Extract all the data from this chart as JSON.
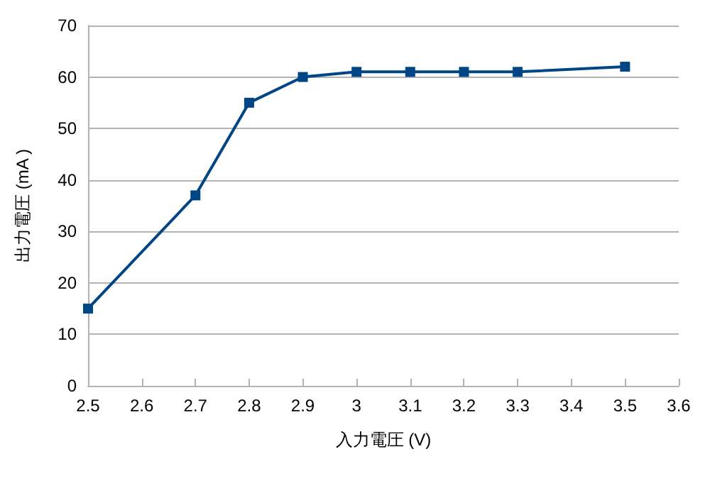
{
  "chart_data": {
    "type": "line",
    "xlabel": "入力電圧 (V)",
    "ylabel": "出力電圧 (mA )",
    "x": [
      2.5,
      2.7,
      2.8,
      2.9,
      3,
      3.1,
      3.2,
      3.3,
      3.5
    ],
    "series": [
      {
        "color": "#004586",
        "values": [
          15,
          37,
          55,
          60,
          61,
          61,
          61,
          61,
          62
        ]
      }
    ],
    "xlim": [
      2.5,
      3.6
    ],
    "xticks": [
      2.5,
      2.6,
      2.7,
      2.8,
      2.9,
      3,
      3.1,
      3.2,
      3.3,
      3.4,
      3.5,
      3.6
    ],
    "ylim": [
      0,
      70
    ],
    "yticks": [
      0,
      10,
      20,
      30,
      40,
      50,
      60,
      70
    ],
    "grid": "y",
    "marker": "square",
    "line_style": "solid"
  }
}
